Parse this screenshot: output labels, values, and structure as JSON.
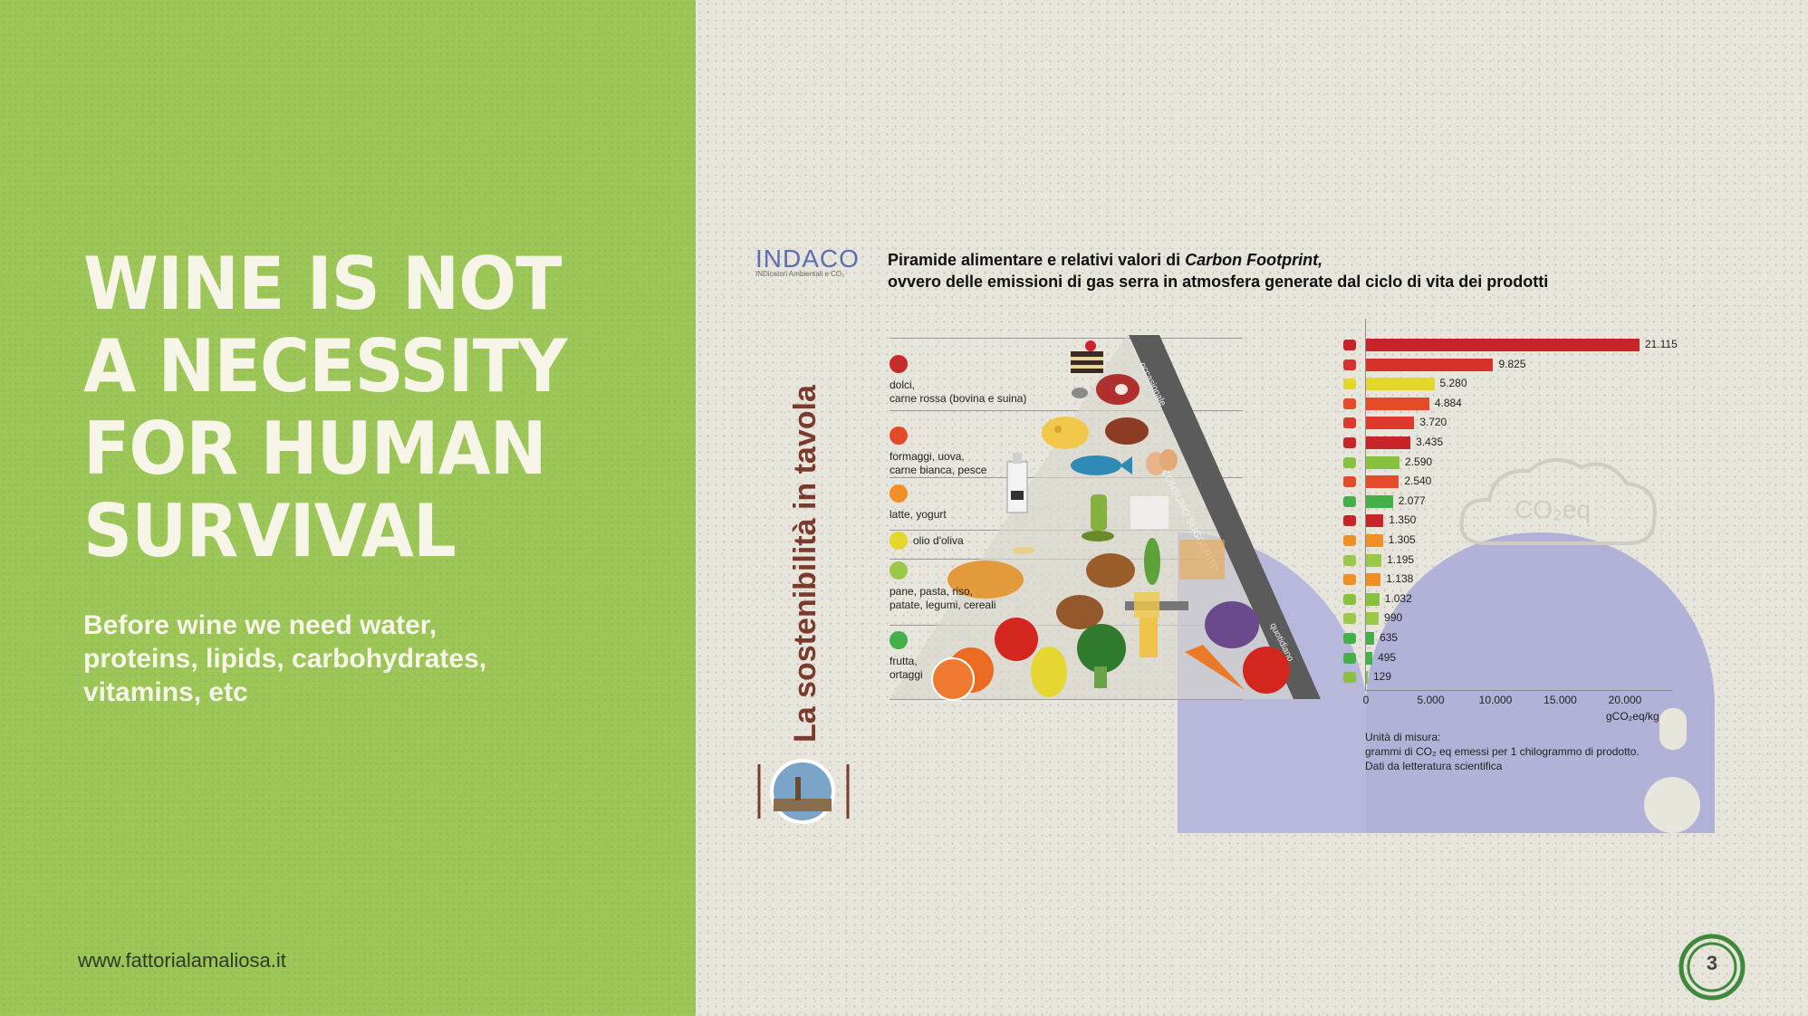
{
  "left_panel": {
    "headline": [
      "WINE IS NOT",
      "A NECESSITY",
      "FOR HUMAN",
      "SURVIVAL"
    ],
    "subtext": [
      "Before wine we need water,",
      "proteins, lipids, carbohydrates,",
      "vitamins, etc"
    ],
    "website": "www.fattorialamaliosa.it"
  },
  "infographic": {
    "logo": {
      "name": "INDACO",
      "sub": "INDicatori Ambientali e CO₂"
    },
    "title_line1_prefix": "Piramide alimentare e relativi valori di ",
    "title_line1_em": "Carbon Footprint,",
    "title_line2": "ovvero delle emissioni di gas serra in atmosfera generate dal ciclo di vita dei prodotti",
    "vertical_title": "La sostenibilità in tavola",
    "pyramid_side_labels": [
      "CONSUMO SUGGERITO",
      "quotidiano",
      "occasionale"
    ],
    "cloud_label": "CO₂eq",
    "legend": [
      {
        "lines": [
          "dolci,",
          "carne rossa (bovina e suina)"
        ],
        "color": "#c62a2a"
      },
      {
        "lines": [
          "formaggi, uova,",
          "carne bianca, pesce"
        ],
        "color": "#e34b2b"
      },
      {
        "lines": [
          "latte, yogurt"
        ],
        "color": "#ef8f26"
      },
      {
        "lines": [
          "olio d'oliva"
        ],
        "color": "#e2d72a"
      },
      {
        "lines": [
          "pane, pasta, riso,",
          "patate, legumi, cereali"
        ],
        "color": "#9bc848"
      },
      {
        "lines": [
          "frutta,",
          "ortaggi"
        ],
        "color": "#44b04a"
      }
    ],
    "colors": {
      "green_panel": "#9cc657",
      "paper": "#e8e5dc",
      "title_brown": "#7a3b2c",
      "blob": "#b2b2d8"
    },
    "axis": {
      "ticks": [
        "0",
        "5.000",
        "10.000",
        "15.000",
        "20.000"
      ],
      "unit": "gCO₂eq/kg"
    },
    "note_lines": [
      "Unità di misura:",
      "grammi di CO₂ eq emessi per 1 chilogrammo di prodotto.",
      "Dati da letteratura scientifica"
    ],
    "page_number": "3"
  },
  "chart_data": {
    "type": "bar",
    "orientation": "horizontal",
    "values": [
      21115,
      9825,
      5280,
      4884,
      3720,
      3435,
      2590,
      2540,
      2077,
      1350,
      1305,
      1195,
      1138,
      1032,
      990,
      635,
      495,
      129
    ],
    "value_labels": [
      "21.115",
      "9.825",
      "5.280",
      "4.884",
      "3.720",
      "3.435",
      "2.590",
      "2.540",
      "2.077",
      "1.350",
      "1.305",
      "1.195",
      "1.138",
      "1.032",
      "990",
      "635",
      "495",
      "129"
    ],
    "colors": [
      "#c8252a",
      "#d5322c",
      "#e2d72a",
      "#e34b2b",
      "#dd3a2c",
      "#c8252a",
      "#88c040",
      "#e34b2b",
      "#44b04a",
      "#c8252a",
      "#ef8f26",
      "#9bc848",
      "#ef8f26",
      "#88c040",
      "#9bc848",
      "#44b04a",
      "#44b04a",
      "#88c040"
    ],
    "icons": [
      "beef-icon",
      "steak-icon",
      "cheese-icon",
      "fish-icon",
      "chicken-icon",
      "pork-icon",
      "bean-icon",
      "egg-icon",
      "broccoli-icon",
      "sweets-icon",
      "milk-icon",
      "bread-icon",
      "yogurt-icon",
      "pasta-icon",
      "rice-icon",
      "apple-icon",
      "vegetable-icon",
      "potato-icon"
    ],
    "xlim": [
      0,
      22000
    ],
    "xlabel": "gCO₂eq/kg"
  }
}
